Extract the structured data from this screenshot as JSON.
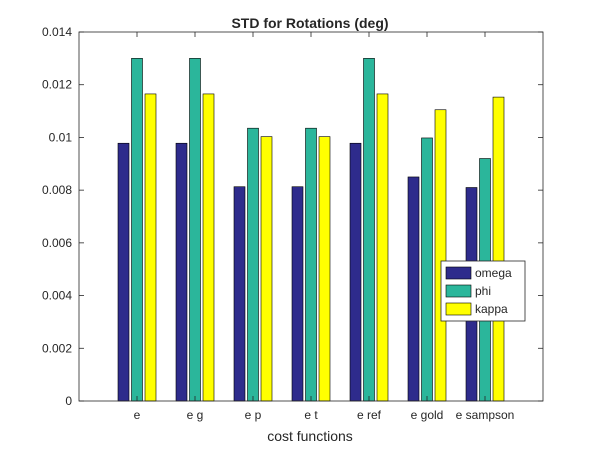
{
  "chart_data": {
    "type": "bar",
    "title": "STD for Rotations (deg)",
    "xlabel": "cost functions",
    "ylabel": "",
    "categories": [
      "e",
      "e g",
      "e p",
      "e t",
      "e ref",
      "e gold",
      "e sampson"
    ],
    "series": [
      {
        "name": "omega",
        "color": "#2e2b8c",
        "values": [
          0.00978,
          0.00978,
          0.00813,
          0.00813,
          0.00978,
          0.0085,
          0.0081
        ]
      },
      {
        "name": "phi",
        "color": "#2bb69b",
        "values": [
          0.013,
          0.013,
          0.01035,
          0.01035,
          0.013,
          0.00998,
          0.0092
        ]
      },
      {
        "name": "kappa",
        "color": "#ffff00",
        "values": [
          0.01165,
          0.01165,
          0.01003,
          0.01003,
          0.01165,
          0.01105,
          0.01153
        ]
      }
    ],
    "ylim": [
      0,
      0.014
    ],
    "yticks": [
      0,
      0.002,
      0.004,
      0.006,
      0.008,
      0.01,
      0.012,
      0.014
    ],
    "ytick_labels": [
      "0",
      "0.002",
      "0.004",
      "0.006",
      "0.008",
      "0.01",
      "0.012",
      "0.014"
    ],
    "legend_position": "right-middle",
    "grid": false
  }
}
